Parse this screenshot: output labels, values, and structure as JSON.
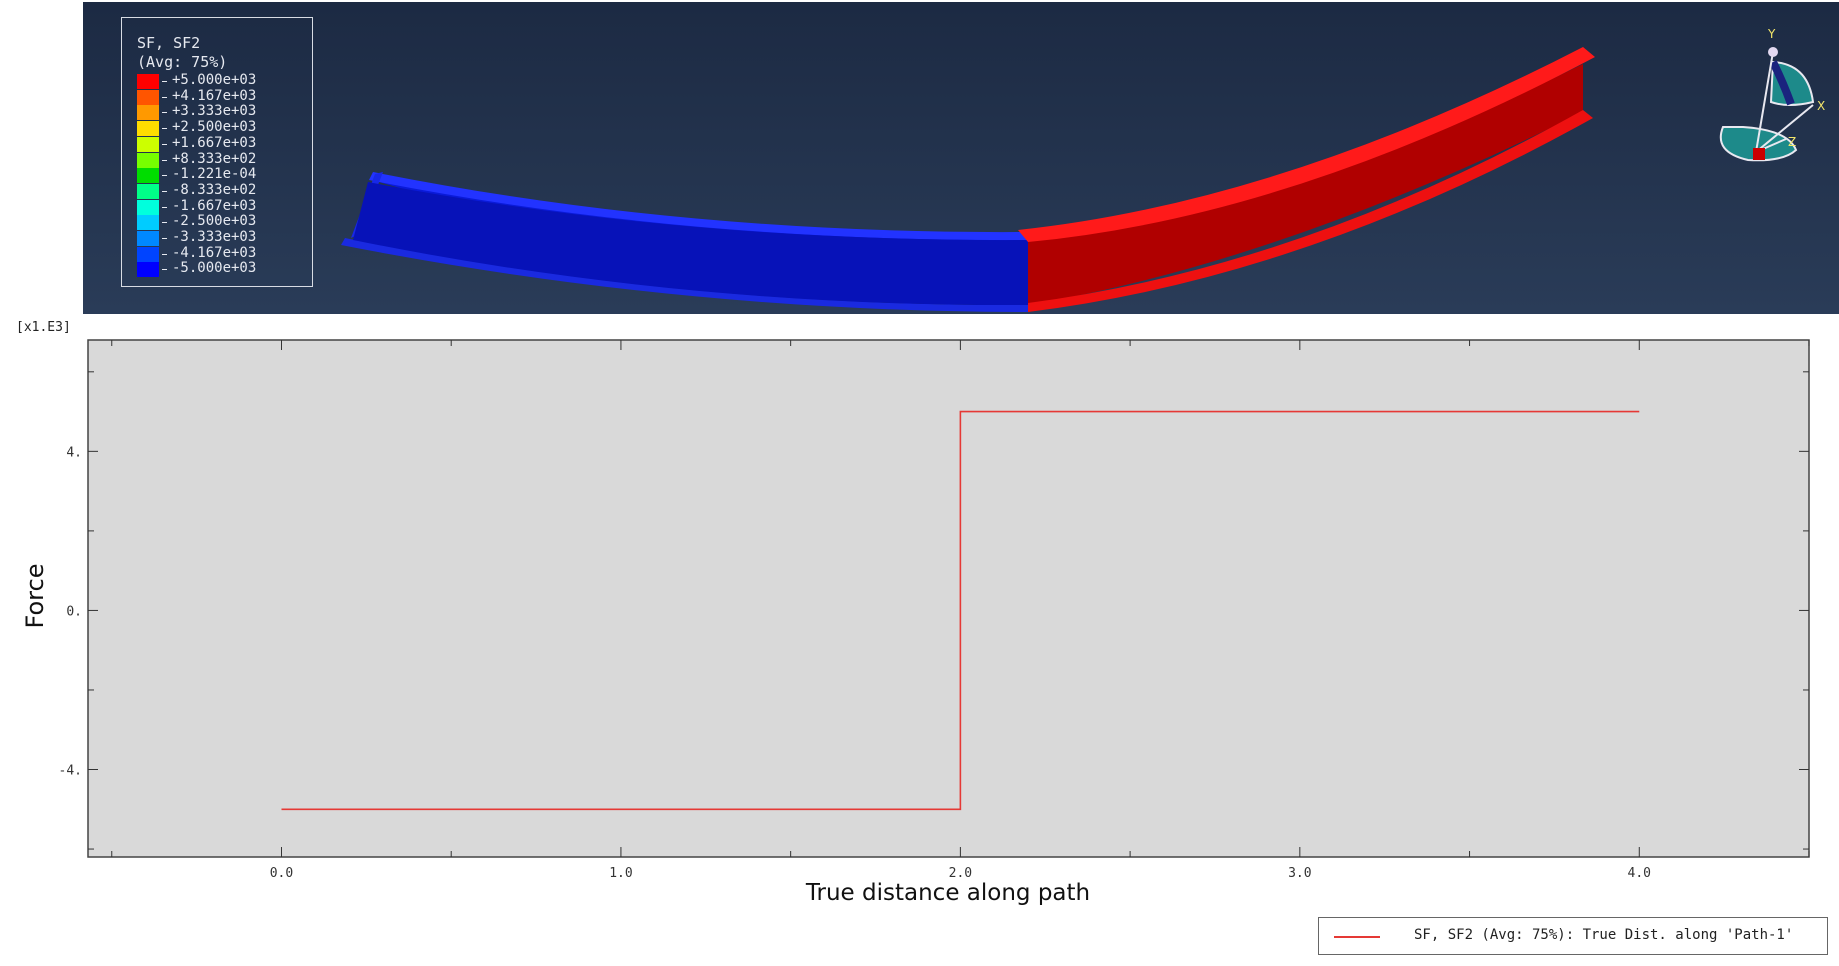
{
  "viewport": {
    "legend": {
      "title_line1": "SF, SF2",
      "title_line2": "(Avg: 75%)",
      "entries": [
        {
          "label": "+5.000e+03",
          "color": "#ff0000"
        },
        {
          "label": "+4.167e+03",
          "color": "#ff5500"
        },
        {
          "label": "+3.333e+03",
          "color": "#ff9900"
        },
        {
          "label": "+2.500e+03",
          "color": "#ffdd00"
        },
        {
          "label": "+1.667e+03",
          "color": "#ccff00"
        },
        {
          "label": "+8.333e+02",
          "color": "#77ff00"
        },
        {
          "label": "-1.221e-04",
          "color": "#00dd00"
        },
        {
          "label": "-8.333e+02",
          "color": "#00ff88"
        },
        {
          "label": "-1.667e+03",
          "color": "#00ffdd"
        },
        {
          "label": "-2.500e+03",
          "color": "#00ccff"
        },
        {
          "label": "-3.333e+03",
          "color": "#0088ff"
        },
        {
          "label": "-4.167e+03",
          "color": "#0044ff"
        },
        {
          "label": "-5.000e+03",
          "color": "#0000ff"
        }
      ]
    },
    "triad": {
      "x_label": "X",
      "y_label": "Y",
      "z_label": "Z"
    },
    "beam_colors": {
      "negative": "#0a1ad8",
      "positive": "#ee0000"
    }
  },
  "chart": {
    "multiplier": "[x1.E3]",
    "legend_text": "SF, SF2 (Avg: 75%): True Dist. along 'Path-1'",
    "line_color": "#e53935"
  },
  "chart_data": {
    "type": "line",
    "xlabel": "True distance along path",
    "ylabel": "Force",
    "xlim": [
      -0.57,
      4.5
    ],
    "ylim": [
      -6.2,
      6.8
    ],
    "x_ticks": [
      {
        "value": 0,
        "label": "0.0"
      },
      {
        "value": 1,
        "label": "1.0"
      },
      {
        "value": 2,
        "label": "2.0"
      },
      {
        "value": 3,
        "label": "3.0"
      },
      {
        "value": 4,
        "label": "4.0"
      }
    ],
    "y_ticks": [
      {
        "value": 4,
        "label": "4."
      },
      {
        "value": 0,
        "label": "0."
      },
      {
        "value": -4,
        "label": "-4."
      }
    ],
    "grid": false,
    "legend_position": "bottom-right",
    "series": [
      {
        "name": "SF, SF2 (Avg: 75%): True Dist. along 'Path-1'",
        "x": [
          0.0,
          2.0,
          2.0,
          4.0
        ],
        "y": [
          -5.0,
          -5.0,
          5.0,
          5.0
        ]
      }
    ]
  }
}
